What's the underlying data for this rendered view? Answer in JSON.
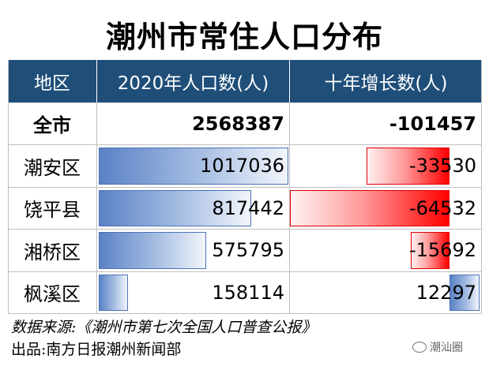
{
  "title": "潮州市常住人口分布",
  "headers": [
    "地区",
    "2020年人口数(人)",
    "十年增长数(人)"
  ],
  "total": {
    "name": "全市",
    "population": "2568387",
    "growth": "-101457"
  },
  "chart_data": {
    "type": "table",
    "title": "潮州市常住人口分布",
    "columns": [
      "地区",
      "2020年人口数(人)",
      "十年增长数(人)"
    ],
    "rows": [
      {
        "name": "潮安区",
        "population": 1017036,
        "growth": -33530
      },
      {
        "name": "饶平县",
        "population": 817442,
        "growth": -64532
      },
      {
        "name": "湘桥区",
        "population": 575795,
        "growth": -15692
      },
      {
        "name": "枫溪区",
        "population": 158114,
        "growth": 12297
      }
    ]
  },
  "source": "数据来源:《潮州市第七次全国人口普查公报》",
  "credit": "出品:南方日报潮州新闻部",
  "watermark": "潮汕圈",
  "colors": {
    "header_bg": "#1f4e79",
    "positive_bar": "#5b82c6",
    "negative_bar": "#ff0000"
  }
}
